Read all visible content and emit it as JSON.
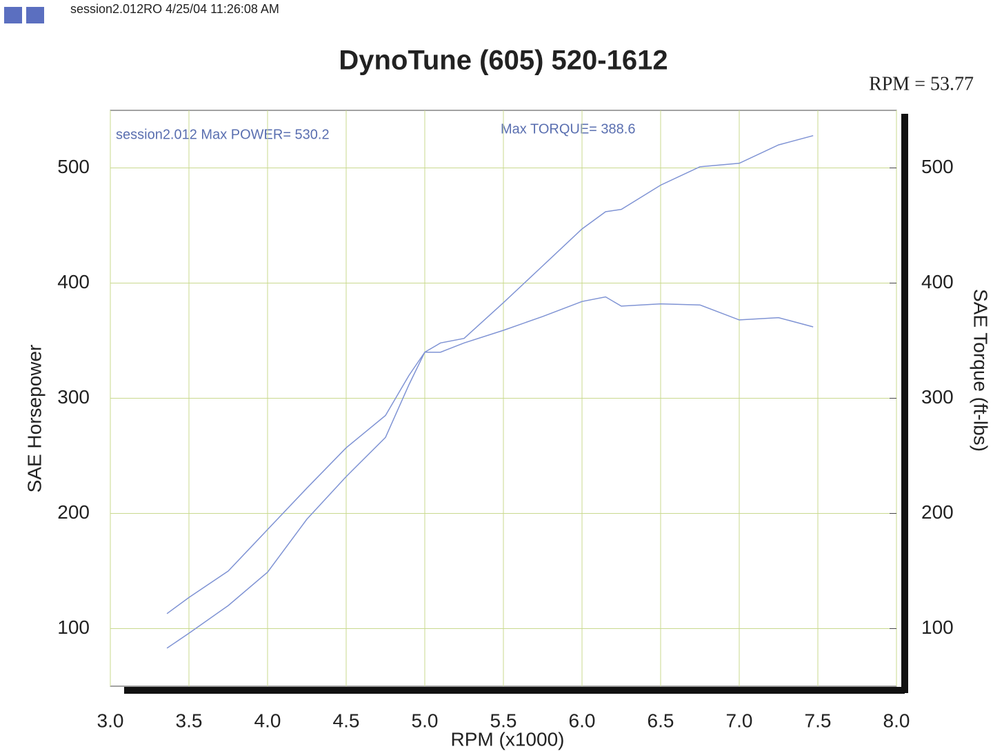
{
  "chart_data": {
    "type": "line",
    "header": "session2.012RO  4/25/04 11:26:08 AM",
    "title": "DynoTune  (605) 520-1612",
    "subtitle": "RPM = 53.77",
    "annotations": [
      "session2.012  Max POWER= 530.2",
      "Max TORQUE= 388.6"
    ],
    "x_label": "RPM (x1000)",
    "y_label": "SAE Horsepower",
    "y2_label": "SAE Torque (ft-lbs)",
    "x": [
      3.36,
      3.5,
      3.75,
      4.0,
      4.25,
      4.5,
      4.75,
      4.9,
      5.0,
      5.1,
      5.25,
      5.5,
      5.75,
      6.0,
      6.15,
      6.25,
      6.5,
      6.75,
      7.0,
      7.25,
      7.47
    ],
    "series": [
      {
        "color": "#7f93d4",
        "axis": "y",
        "values": [
          83,
          96,
          120,
          149,
          195,
          232,
          266,
          312,
          340,
          348,
          352,
          383,
          415,
          447,
          462,
          464,
          485,
          501,
          504,
          520,
          528
        ]
      },
      {
        "color": "#7f93d4",
        "axis": "y2",
        "values": [
          113,
          127,
          150,
          186,
          222,
          257,
          285,
          320,
          340,
          340,
          348,
          359,
          371,
          384,
          388,
          380,
          382,
          381,
          368,
          370,
          362
        ]
      }
    ],
    "xlim": [
      3.0,
      8.0
    ],
    "xticks": [
      {
        "value": 3.0,
        "label": "3.0"
      },
      3.5,
      {
        "value": 4.0,
        "label": "4.0"
      },
      4.5,
      {
        "value": 5.0,
        "label": "5.0"
      },
      5.5,
      {
        "value": 6.0,
        "label": "6.0"
      },
      6.5,
      {
        "value": 7.0,
        "label": "7.0"
      },
      7.5,
      {
        "value": 8.0,
        "label": "8.0"
      }
    ],
    "ylim": [
      50,
      550
    ],
    "yticks": [
      100,
      200,
      300,
      400,
      500
    ],
    "y2lim": [
      50,
      550
    ],
    "y2ticks": [
      100,
      200,
      300,
      400,
      500
    ],
    "grid": true
  }
}
